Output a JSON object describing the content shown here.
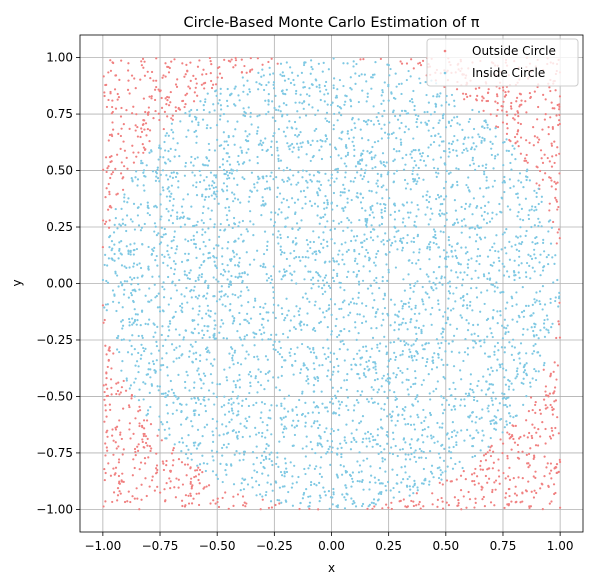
{
  "chart_data": {
    "type": "scatter",
    "title": "Circle-Based Monte Carlo Estimation of π",
    "xlabel": "x",
    "ylabel": "y",
    "xlim": [
      -1.1,
      1.1
    ],
    "ylim": [
      -1.1,
      1.1
    ],
    "x_ticks": [
      -1.0,
      -0.75,
      -0.5,
      -0.25,
      0.0,
      0.25,
      0.5,
      0.75,
      1.0
    ],
    "y_ticks": [
      -1.0,
      -0.75,
      -0.5,
      -0.25,
      0.0,
      0.25,
      0.5,
      0.75,
      1.0
    ],
    "x_tick_labels": [
      "−1.00",
      "−0.75",
      "−0.50",
      "−0.25",
      "0.00",
      "0.25",
      "0.50",
      "0.75",
      "1.00"
    ],
    "y_tick_labels": [
      "−1.00",
      "−0.75",
      "−0.50",
      "−0.25",
      "0.00",
      "0.25",
      "0.50",
      "0.75",
      "1.00"
    ],
    "grid": true,
    "legend_position": "top-right",
    "series": [
      {
        "name": "Outside Circle",
        "color": "#f08080",
        "region": "x^2 + y^2 > 1"
      },
      {
        "name": "Inside Circle",
        "color": "#7ec8e3",
        "region": "x^2 + y^2 <= 1"
      }
    ],
    "points_total": 5000,
    "sampling_domain": {
      "x": [
        -1,
        1
      ],
      "y": [
        -1,
        1
      ]
    }
  }
}
